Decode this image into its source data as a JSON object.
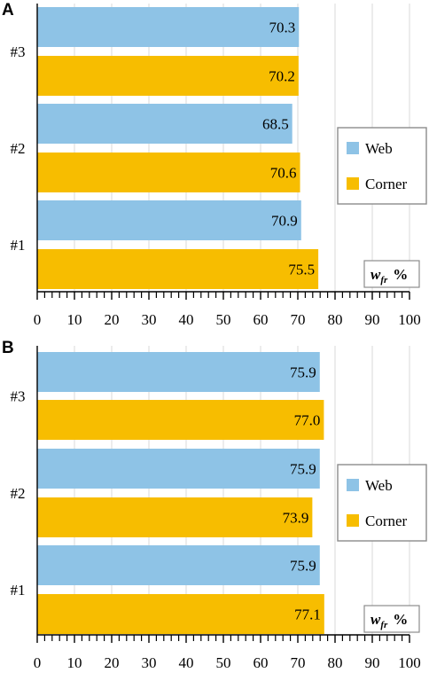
{
  "chart_data": [
    {
      "panel": "A",
      "type": "bar",
      "orientation": "horizontal",
      "categories": [
        "#3",
        "#2",
        "#1"
      ],
      "series": [
        {
          "name": "Web",
          "color": "#8EC3E6",
          "values": [
            70.3,
            68.5,
            70.9
          ]
        },
        {
          "name": "Corner",
          "color": "#F7BD00",
          "values": [
            70.2,
            70.6,
            75.5
          ]
        }
      ],
      "xlim": [
        0,
        100
      ],
      "xticks": [
        0,
        10,
        20,
        30,
        40,
        50,
        60,
        70,
        80,
        90,
        100
      ],
      "unit_label": {
        "var": "w",
        "sub": "fr",
        "unit": "%"
      },
      "grid": "vertical",
      "legend_position": "right"
    },
    {
      "panel": "B",
      "type": "bar",
      "orientation": "horizontal",
      "categories": [
        "#3",
        "#2",
        "#1"
      ],
      "series": [
        {
          "name": "Web",
          "color": "#8EC3E6",
          "values": [
            75.9,
            75.9,
            75.9
          ]
        },
        {
          "name": "Corner",
          "color": "#F7BD00",
          "values": [
            77.0,
            73.9,
            77.1
          ]
        }
      ],
      "xlim": [
        0,
        100
      ],
      "xticks": [
        0,
        10,
        20,
        30,
        40,
        50,
        60,
        70,
        80,
        90,
        100
      ],
      "unit_label": {
        "var": "w",
        "sub": "fr",
        "unit": "%"
      },
      "grid": "vertical",
      "legend_position": "right"
    }
  ]
}
